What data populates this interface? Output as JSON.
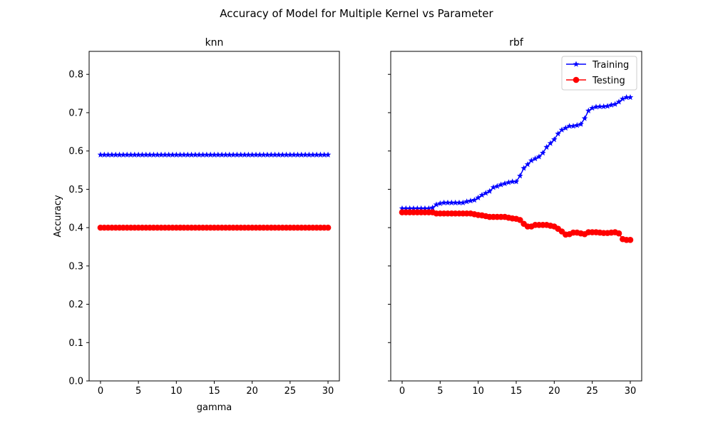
{
  "figure": {
    "title": "Accuracy of Model for Multiple Kernel vs Parameter"
  },
  "chart_data": [
    {
      "type": "line",
      "title": "knn",
      "xlabel": "gamma",
      "ylabel": "Accuracy",
      "xlim": [
        -1.5,
        31.5
      ],
      "ylim": [
        0.0,
        0.86
      ],
      "xticks": [
        0,
        5,
        10,
        15,
        20,
        25,
        30
      ],
      "yticks": [
        0.0,
        0.1,
        0.2,
        0.3,
        0.4,
        0.5,
        0.6,
        0.7,
        0.8
      ],
      "ytick_labels": [
        "0.0",
        "0.1",
        "0.2",
        "0.3",
        "0.4",
        "0.5",
        "0.6",
        "0.7",
        "0.8"
      ],
      "grid": false,
      "legend": null,
      "series": [
        {
          "name": "Training",
          "color": "#0000ff",
          "marker": "star",
          "points": [
            [
              0.0,
              0.59
            ],
            [
              0.5,
              0.59
            ],
            [
              1.0,
              0.59
            ],
            [
              1.5,
              0.59
            ],
            [
              2.0,
              0.59
            ],
            [
              2.5,
              0.59
            ],
            [
              3.0,
              0.59
            ],
            [
              3.5,
              0.59
            ],
            [
              4.0,
              0.59
            ],
            [
              4.5,
              0.59
            ],
            [
              5.0,
              0.59
            ],
            [
              5.5,
              0.59
            ],
            [
              6.0,
              0.59
            ],
            [
              6.5,
              0.59
            ],
            [
              7.0,
              0.59
            ],
            [
              7.5,
              0.59
            ],
            [
              8.0,
              0.59
            ],
            [
              8.5,
              0.59
            ],
            [
              9.0,
              0.59
            ],
            [
              9.5,
              0.59
            ],
            [
              10.0,
              0.59
            ],
            [
              10.5,
              0.59
            ],
            [
              11.0,
              0.59
            ],
            [
              11.5,
              0.59
            ],
            [
              12.0,
              0.59
            ],
            [
              12.5,
              0.59
            ],
            [
              13.0,
              0.59
            ],
            [
              13.5,
              0.59
            ],
            [
              14.0,
              0.59
            ],
            [
              14.5,
              0.59
            ],
            [
              15.0,
              0.59
            ],
            [
              15.5,
              0.59
            ],
            [
              16.0,
              0.59
            ],
            [
              16.5,
              0.59
            ],
            [
              17.0,
              0.59
            ],
            [
              17.5,
              0.59
            ],
            [
              18.0,
              0.59
            ],
            [
              18.5,
              0.59
            ],
            [
              19.0,
              0.59
            ],
            [
              19.5,
              0.59
            ],
            [
              20.0,
              0.59
            ],
            [
              20.5,
              0.59
            ],
            [
              21.0,
              0.59
            ],
            [
              21.5,
              0.59
            ],
            [
              22.0,
              0.59
            ],
            [
              22.5,
              0.59
            ],
            [
              23.0,
              0.59
            ],
            [
              23.5,
              0.59
            ],
            [
              24.0,
              0.59
            ],
            [
              24.5,
              0.59
            ],
            [
              25.0,
              0.59
            ],
            [
              25.5,
              0.59
            ],
            [
              26.0,
              0.59
            ],
            [
              26.5,
              0.59
            ],
            [
              27.0,
              0.59
            ],
            [
              27.5,
              0.59
            ],
            [
              28.0,
              0.59
            ],
            [
              28.5,
              0.59
            ],
            [
              29.0,
              0.59
            ],
            [
              29.5,
              0.59
            ],
            [
              30.0,
              0.59
            ]
          ]
        },
        {
          "name": "Testing",
          "color": "#ff0000",
          "marker": "circle",
          "points": [
            [
              0.0,
              0.4
            ],
            [
              0.5,
              0.4
            ],
            [
              1.0,
              0.4
            ],
            [
              1.5,
              0.4
            ],
            [
              2.0,
              0.4
            ],
            [
              2.5,
              0.4
            ],
            [
              3.0,
              0.4
            ],
            [
              3.5,
              0.4
            ],
            [
              4.0,
              0.4
            ],
            [
              4.5,
              0.4
            ],
            [
              5.0,
              0.4
            ],
            [
              5.5,
              0.4
            ],
            [
              6.0,
              0.4
            ],
            [
              6.5,
              0.4
            ],
            [
              7.0,
              0.4
            ],
            [
              7.5,
              0.4
            ],
            [
              8.0,
              0.4
            ],
            [
              8.5,
              0.4
            ],
            [
              9.0,
              0.4
            ],
            [
              9.5,
              0.4
            ],
            [
              10.0,
              0.4
            ],
            [
              10.5,
              0.4
            ],
            [
              11.0,
              0.4
            ],
            [
              11.5,
              0.4
            ],
            [
              12.0,
              0.4
            ],
            [
              12.5,
              0.4
            ],
            [
              13.0,
              0.4
            ],
            [
              13.5,
              0.4
            ],
            [
              14.0,
              0.4
            ],
            [
              14.5,
              0.4
            ],
            [
              15.0,
              0.4
            ],
            [
              15.5,
              0.4
            ],
            [
              16.0,
              0.4
            ],
            [
              16.5,
              0.4
            ],
            [
              17.0,
              0.4
            ],
            [
              17.5,
              0.4
            ],
            [
              18.0,
              0.4
            ],
            [
              18.5,
              0.4
            ],
            [
              19.0,
              0.4
            ],
            [
              19.5,
              0.4
            ],
            [
              20.0,
              0.4
            ],
            [
              20.5,
              0.4
            ],
            [
              21.0,
              0.4
            ],
            [
              21.5,
              0.4
            ],
            [
              22.0,
              0.4
            ],
            [
              22.5,
              0.4
            ],
            [
              23.0,
              0.4
            ],
            [
              23.5,
              0.4
            ],
            [
              24.0,
              0.4
            ],
            [
              24.5,
              0.4
            ],
            [
              25.0,
              0.4
            ],
            [
              25.5,
              0.4
            ],
            [
              26.0,
              0.4
            ],
            [
              26.5,
              0.4
            ],
            [
              27.0,
              0.4
            ],
            [
              27.5,
              0.4
            ],
            [
              28.0,
              0.4
            ],
            [
              28.5,
              0.4
            ],
            [
              29.0,
              0.4
            ],
            [
              29.5,
              0.4
            ],
            [
              30.0,
              0.4
            ]
          ]
        }
      ]
    },
    {
      "type": "line",
      "title": "rbf",
      "xlabel": "",
      "ylabel": "",
      "xlim": [
        -1.5,
        31.5
      ],
      "ylim": [
        0.0,
        0.86
      ],
      "xticks": [
        0,
        5,
        10,
        15,
        20,
        25,
        30
      ],
      "yticks": [
        0.0,
        0.1,
        0.2,
        0.3,
        0.4,
        0.5,
        0.6,
        0.7,
        0.8
      ],
      "ytick_labels": [],
      "grid": false,
      "legend": "top-right",
      "series": [
        {
          "name": "Training",
          "color": "#0000ff",
          "marker": "star",
          "points": [
            [
              0.0,
              0.45
            ],
            [
              0.5,
              0.45
            ],
            [
              1.0,
              0.45
            ],
            [
              1.5,
              0.45
            ],
            [
              2.0,
              0.45
            ],
            [
              2.5,
              0.45
            ],
            [
              3.0,
              0.45
            ],
            [
              3.5,
              0.45
            ],
            [
              4.0,
              0.452
            ],
            [
              4.5,
              0.46
            ],
            [
              5.0,
              0.463
            ],
            [
              5.5,
              0.465
            ],
            [
              6.0,
              0.465
            ],
            [
              6.5,
              0.465
            ],
            [
              7.0,
              0.465
            ],
            [
              7.5,
              0.465
            ],
            [
              8.0,
              0.465
            ],
            [
              8.5,
              0.468
            ],
            [
              9.0,
              0.47
            ],
            [
              9.5,
              0.472
            ],
            [
              10.0,
              0.478
            ],
            [
              10.5,
              0.485
            ],
            [
              11.0,
              0.49
            ],
            [
              11.5,
              0.495
            ],
            [
              12.0,
              0.505
            ],
            [
              12.5,
              0.508
            ],
            [
              13.0,
              0.512
            ],
            [
              13.5,
              0.515
            ],
            [
              14.0,
              0.518
            ],
            [
              14.5,
              0.52
            ],
            [
              15.0,
              0.52
            ],
            [
              15.5,
              0.535
            ],
            [
              16.0,
              0.555
            ],
            [
              16.5,
              0.565
            ],
            [
              17.0,
              0.575
            ],
            [
              17.5,
              0.58
            ],
            [
              18.0,
              0.585
            ],
            [
              18.5,
              0.595
            ],
            [
              19.0,
              0.61
            ],
            [
              19.5,
              0.62
            ],
            [
              20.0,
              0.63
            ],
            [
              20.5,
              0.645
            ],
            [
              21.0,
              0.655
            ],
            [
              21.5,
              0.66
            ],
            [
              22.0,
              0.665
            ],
            [
              22.5,
              0.665
            ],
            [
              23.0,
              0.667
            ],
            [
              23.5,
              0.67
            ],
            [
              24.0,
              0.685
            ],
            [
              24.5,
              0.705
            ],
            [
              25.0,
              0.712
            ],
            [
              25.5,
              0.715
            ],
            [
              26.0,
              0.716
            ],
            [
              26.5,
              0.716
            ],
            [
              27.0,
              0.717
            ],
            [
              27.5,
              0.72
            ],
            [
              28.0,
              0.722
            ],
            [
              28.5,
              0.728
            ],
            [
              29.0,
              0.736
            ],
            [
              29.5,
              0.74
            ],
            [
              30.0,
              0.74
            ]
          ]
        },
        {
          "name": "Testing",
          "color": "#ff0000",
          "marker": "circle",
          "points": [
            [
              0.0,
              0.44
            ],
            [
              0.5,
              0.44
            ],
            [
              1.0,
              0.44
            ],
            [
              1.5,
              0.44
            ],
            [
              2.0,
              0.44
            ],
            [
              2.5,
              0.44
            ],
            [
              3.0,
              0.44
            ],
            [
              3.5,
              0.44
            ],
            [
              4.0,
              0.44
            ],
            [
              4.5,
              0.437
            ],
            [
              5.0,
              0.437
            ],
            [
              5.5,
              0.437
            ],
            [
              6.0,
              0.437
            ],
            [
              6.5,
              0.437
            ],
            [
              7.0,
              0.437
            ],
            [
              7.5,
              0.437
            ],
            [
              8.0,
              0.437
            ],
            [
              8.5,
              0.437
            ],
            [
              9.0,
              0.437
            ],
            [
              9.5,
              0.435
            ],
            [
              10.0,
              0.433
            ],
            [
              10.5,
              0.432
            ],
            [
              11.0,
              0.43
            ],
            [
              11.5,
              0.428
            ],
            [
              12.0,
              0.428
            ],
            [
              12.5,
              0.428
            ],
            [
              13.0,
              0.428
            ],
            [
              13.5,
              0.428
            ],
            [
              14.0,
              0.426
            ],
            [
              14.5,
              0.424
            ],
            [
              15.0,
              0.423
            ],
            [
              15.5,
              0.42
            ],
            [
              16.0,
              0.41
            ],
            [
              16.5,
              0.403
            ],
            [
              17.0,
              0.403
            ],
            [
              17.5,
              0.407
            ],
            [
              18.0,
              0.407
            ],
            [
              18.5,
              0.407
            ],
            [
              19.0,
              0.407
            ],
            [
              19.5,
              0.405
            ],
            [
              20.0,
              0.403
            ],
            [
              20.5,
              0.397
            ],
            [
              21.0,
              0.39
            ],
            [
              21.5,
              0.382
            ],
            [
              22.0,
              0.383
            ],
            [
              22.5,
              0.387
            ],
            [
              23.0,
              0.387
            ],
            [
              23.5,
              0.385
            ],
            [
              24.0,
              0.383
            ],
            [
              24.5,
              0.388
            ],
            [
              25.0,
              0.388
            ],
            [
              25.5,
              0.388
            ],
            [
              26.0,
              0.387
            ],
            [
              26.5,
              0.386
            ],
            [
              27.0,
              0.386
            ],
            [
              27.5,
              0.387
            ],
            [
              28.0,
              0.388
            ],
            [
              28.5,
              0.385
            ],
            [
              29.0,
              0.37
            ],
            [
              29.5,
              0.368
            ],
            [
              30.0,
              0.368
            ]
          ]
        }
      ]
    }
  ]
}
